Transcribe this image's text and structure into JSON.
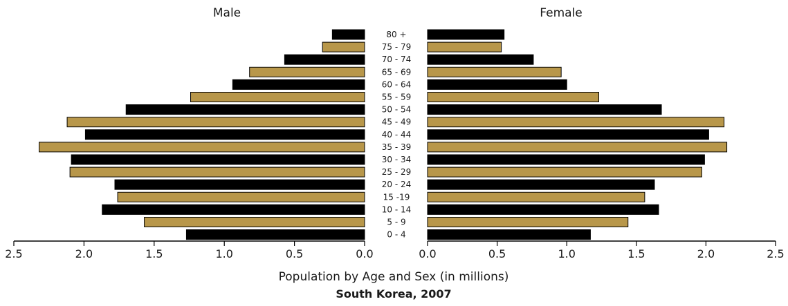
{
  "chart_data": {
    "type": "bar",
    "orientation": "horizontal",
    "layout": "population-pyramid",
    "categories": [
      "80 +",
      "75 - 79",
      "70 - 74",
      "65 - 69",
      "60 - 64",
      "55 - 59",
      "50 - 54",
      "45 - 49",
      "40 - 44",
      "35 - 39",
      "30 - 34",
      "25 - 29",
      "20 - 24",
      "15 -19",
      "10 - 14",
      "5 - 9",
      "0 - 4"
    ],
    "series": [
      {
        "name": "Male",
        "values": [
          0.23,
          0.3,
          0.57,
          0.82,
          0.94,
          1.24,
          1.7,
          2.12,
          1.99,
          2.32,
          2.09,
          2.1,
          1.78,
          1.76,
          1.87,
          1.57,
          1.27
        ]
      },
      {
        "name": "Female",
        "values": [
          0.55,
          0.53,
          0.76,
          0.96,
          1.0,
          1.23,
          1.68,
          2.13,
          2.02,
          2.15,
          1.99,
          1.97,
          1.63,
          1.56,
          1.66,
          1.44,
          1.17
        ]
      }
    ],
    "bar_colors": [
      "#000000",
      "#b8974a"
    ],
    "xlim": [
      0,
      2.5
    ],
    "x_ticks": [
      "0.0",
      "0.5",
      "1.0",
      "1.5",
      "2.0",
      "2.5"
    ],
    "xlabel": "Population by Age and Sex (in millions)",
    "subtitle": "South Korea, 2007"
  }
}
